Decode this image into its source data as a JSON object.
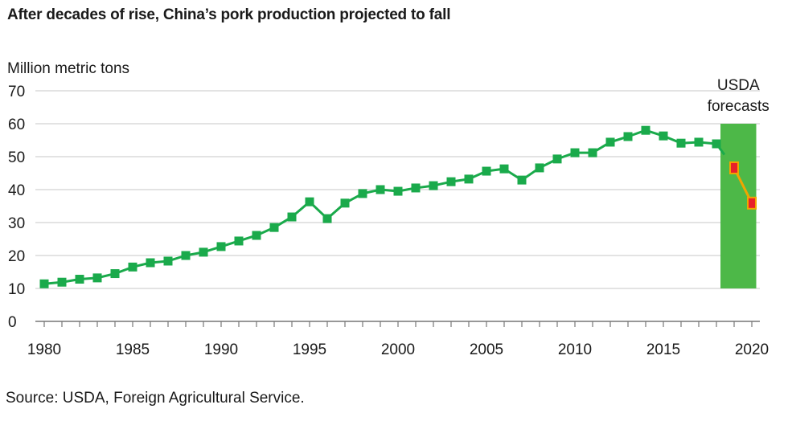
{
  "chart_data": {
    "type": "line",
    "title": "After decades of rise, China’s pork production projected to fall",
    "ylabel": "Million metric tons",
    "xlabel": "",
    "source": "Source: USDA, Foreign Agricultural Service.",
    "ylim": [
      0,
      70
    ],
    "xlim": [
      1980,
      2020
    ],
    "grid": true,
    "yticks": [
      "0",
      "10",
      "20",
      "30",
      "40",
      "50",
      "60",
      "70"
    ],
    "xticks": [
      "1980",
      "1985",
      "1990",
      "1995",
      "2000",
      "2005",
      "2010",
      "2015",
      "2020"
    ],
    "annotation": {
      "text_line1": "USDA",
      "text_line2": "forecasts",
      "range_x": [
        2018.5,
        2020.25
      ],
      "range_y": [
        10,
        60
      ]
    },
    "series": [
      {
        "name": "Pork production",
        "color": "#1aaa4b",
        "x": [
          1980,
          1981,
          1982,
          1983,
          1984,
          1985,
          1986,
          1987,
          1988,
          1989,
          1990,
          1991,
          1992,
          1993,
          1994,
          1995,
          1996,
          1997,
          1998,
          1999,
          2000,
          2001,
          2002,
          2003,
          2004,
          2005,
          2006,
          2007,
          2008,
          2009,
          2010,
          2011,
          2012,
          2013,
          2014,
          2015,
          2016,
          2017,
          2018
        ],
        "values": [
          11.4,
          11.9,
          12.8,
          13.2,
          14.5,
          16.5,
          17.8,
          18.3,
          20.0,
          21.0,
          22.7,
          24.4,
          26.1,
          28.5,
          31.7,
          36.3,
          31.2,
          35.9,
          38.8,
          40.0,
          39.5,
          40.5,
          41.2,
          42.4,
          43.2,
          45.6,
          46.3,
          42.9,
          46.6,
          49.3,
          51.2,
          51.2,
          54.4,
          56.1,
          58.0,
          56.3,
          54.1,
          54.4,
          53.9
        ]
      },
      {
        "name": "USDA forecasts",
        "color": "#f0a500",
        "marker_color": "#e8202a",
        "x": [
          2019,
          2020
        ],
        "values": [
          46.6,
          35.9
        ]
      }
    ],
    "colors": {
      "forecast_band": "#4db848",
      "grid": "#e3e3e3",
      "axis": "#777777"
    }
  }
}
